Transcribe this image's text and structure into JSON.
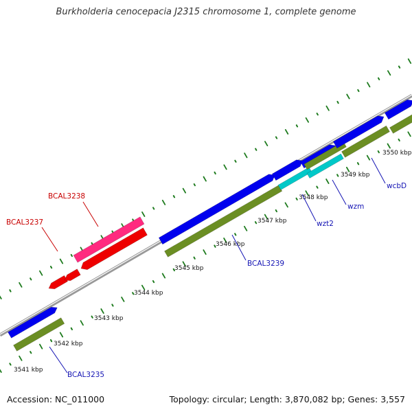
{
  "title": "Burkholderia cenocepacia J2315 chromosome 1, complete genome",
  "footer": {
    "accession": "Accession: NC_011000",
    "stats": "Topology: circular; Length: 3,870,082 bp; Genes: 3,557"
  },
  "colors": {
    "background": "#ffffff",
    "backbone": "#999999",
    "tick": "#1e7b1e",
    "forward_cds": "#0000ee",
    "gene_band": "#6b8e23",
    "rna": "#ff2a7f",
    "reverse_cds": "#ee0000",
    "highlight": "#00c8c8",
    "label_blue": "#1414b4",
    "label_red": "#c80000"
  },
  "ruler": {
    "unit": "kbp",
    "ticks": [
      {
        "kbp": 3541,
        "label": "3541 kbp"
      },
      {
        "kbp": 3542,
        "label": "3542 kbp"
      },
      {
        "kbp": 3543,
        "label": "3543 kbp"
      },
      {
        "kbp": 3544,
        "label": "3544 kbp"
      },
      {
        "kbp": 3545,
        "label": "3545 kbp"
      },
      {
        "kbp": 3546,
        "label": "3546 kbp"
      },
      {
        "kbp": 3547,
        "label": "3547 kbp"
      },
      {
        "kbp": 3548,
        "label": "3548 kbp"
      },
      {
        "kbp": 3549,
        "label": "3549 kbp"
      },
      {
        "kbp": 3550,
        "label": "3550 kbp"
      }
    ]
  },
  "genes": [
    {
      "id": "BCAL3235",
      "label": "BCAL3235",
      "label_color": "blue"
    },
    {
      "id": "BCAL3237",
      "label": "BCAL3237",
      "label_color": "red"
    },
    {
      "id": "BCAL3238",
      "label": "BCAL3238",
      "label_color": "red"
    },
    {
      "id": "BCAL3239",
      "label": "BCAL3239",
      "label_color": "blue"
    },
    {
      "id": "wzt2",
      "label": "wzt2",
      "label_color": "blue"
    },
    {
      "id": "wzm",
      "label": "wzm",
      "label_color": "blue"
    },
    {
      "id": "wcbD",
      "label": "wcbD",
      "label_color": "blue"
    }
  ]
}
